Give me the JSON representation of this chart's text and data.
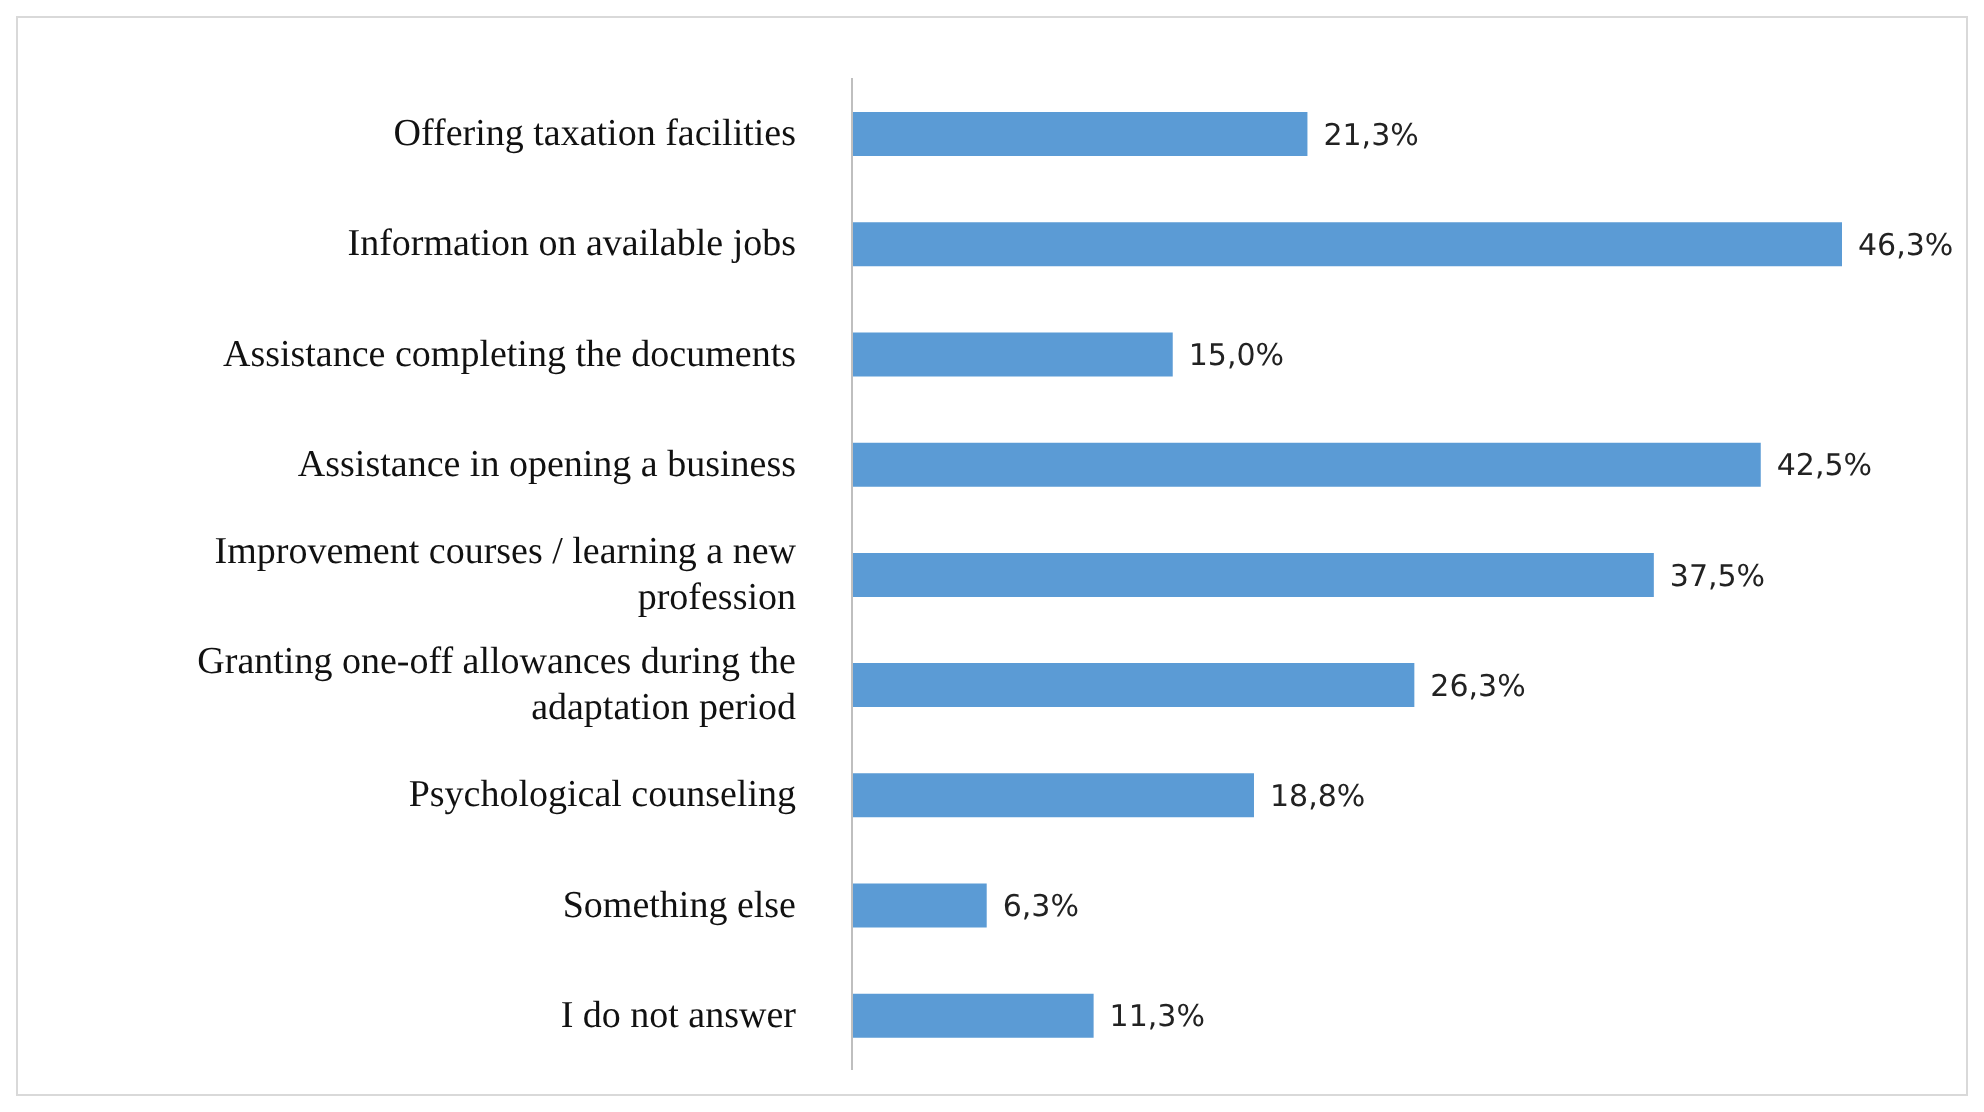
{
  "chart_data": {
    "type": "bar",
    "orientation": "horizontal",
    "categories": [
      "Offering taxation facilities",
      "Information on available jobs",
      "Assistance completing the documents",
      "Assistance in opening a business",
      "Improvement courses / learning a new profession",
      "Granting one-off allowances during the adaptation period",
      "Psychological counseling",
      "Something else",
      "I do not answer"
    ],
    "values": [
      21.3,
      46.3,
      15.0,
      42.5,
      37.5,
      26.3,
      18.8,
      6.3,
      11.3
    ],
    "value_labels": [
      "21,3%",
      "46,3%",
      "15,0%",
      "42,5%",
      "37,5%",
      "26,3%",
      "18,8%",
      "6,3%",
      "11,3%"
    ],
    "color": "#5b9bd5"
  }
}
